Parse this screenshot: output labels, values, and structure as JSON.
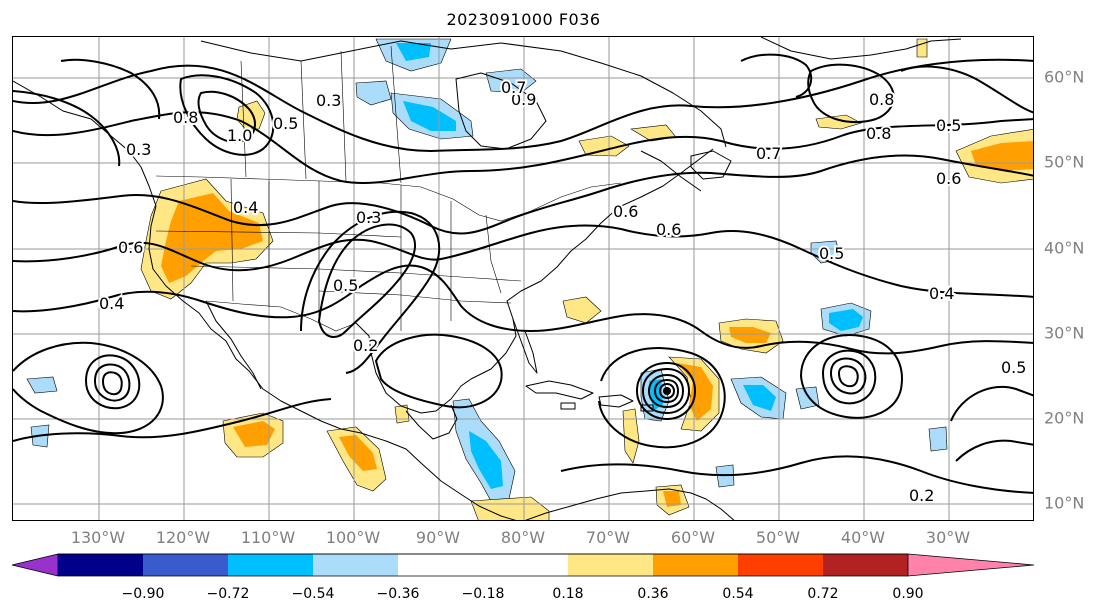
{
  "title": "2023091000 F036",
  "lon_labels": [
    "130°W",
    "120°W",
    "110°W",
    "100°W",
    "90°W",
    "80°W",
    "70°W",
    "60°W",
    "50°W",
    "40°W",
    "30°W"
  ],
  "lat_labels": [
    "60°N",
    "50°N",
    "40°N",
    "30°N",
    "20°N",
    "10°N"
  ],
  "colorbar": {
    "ticks": [
      "−0.90",
      "−0.72",
      "−0.54",
      "−0.36",
      "−0.18",
      "0.18",
      "0.36",
      "0.54",
      "0.72",
      "0.90"
    ],
    "colors": [
      "#9932cc",
      "#00008b",
      "#3a5bcd",
      "#00bfff",
      "#abdcf9",
      "#ffffff",
      "#ffe785",
      "#ffa000",
      "#ff3f00",
      "#b22222",
      "#ff82ab"
    ]
  },
  "contour_labels": [
    {
      "text": "0.3",
      "id": "a"
    },
    {
      "text": "0.3",
      "id": "b"
    },
    {
      "text": "0.4",
      "id": "c"
    },
    {
      "text": "0.5",
      "id": "d"
    },
    {
      "text": "0.5",
      "id": "e"
    },
    {
      "text": "0.6",
      "id": "f"
    },
    {
      "text": "0.6",
      "id": "g"
    },
    {
      "text": "0.7",
      "id": "h"
    },
    {
      "text": "0.8",
      "id": "i"
    },
    {
      "text": "0.8",
      "id": "j"
    },
    {
      "text": "0.9",
      "id": "k"
    },
    {
      "text": "1.0",
      "id": "l"
    },
    {
      "text": "0.2",
      "id": "m"
    },
    {
      "text": "0.4",
      "id": "n"
    },
    {
      "text": "0.5",
      "id": "o"
    },
    {
      "text": "0.6",
      "id": "p"
    },
    {
      "text": "0.7",
      "id": "q"
    },
    {
      "text": "0.3",
      "id": "r"
    },
    {
      "text": "0.4",
      "id": "s"
    },
    {
      "text": "0.5",
      "id": "t"
    },
    {
      "text": "0.2",
      "id": "u"
    },
    {
      "text": "0.5",
      "id": "v"
    },
    {
      "text": "0.8",
      "id": "w"
    },
    {
      "text": "0.6",
      "id": "x"
    }
  ],
  "colors": {
    "light_blue": "#abdcf9",
    "blue": "#00bfff",
    "yellow": "#ffe785",
    "orange": "#ffa000",
    "grid": "#9a9a9a",
    "contour": "#000000",
    "coast": "#000000"
  }
}
